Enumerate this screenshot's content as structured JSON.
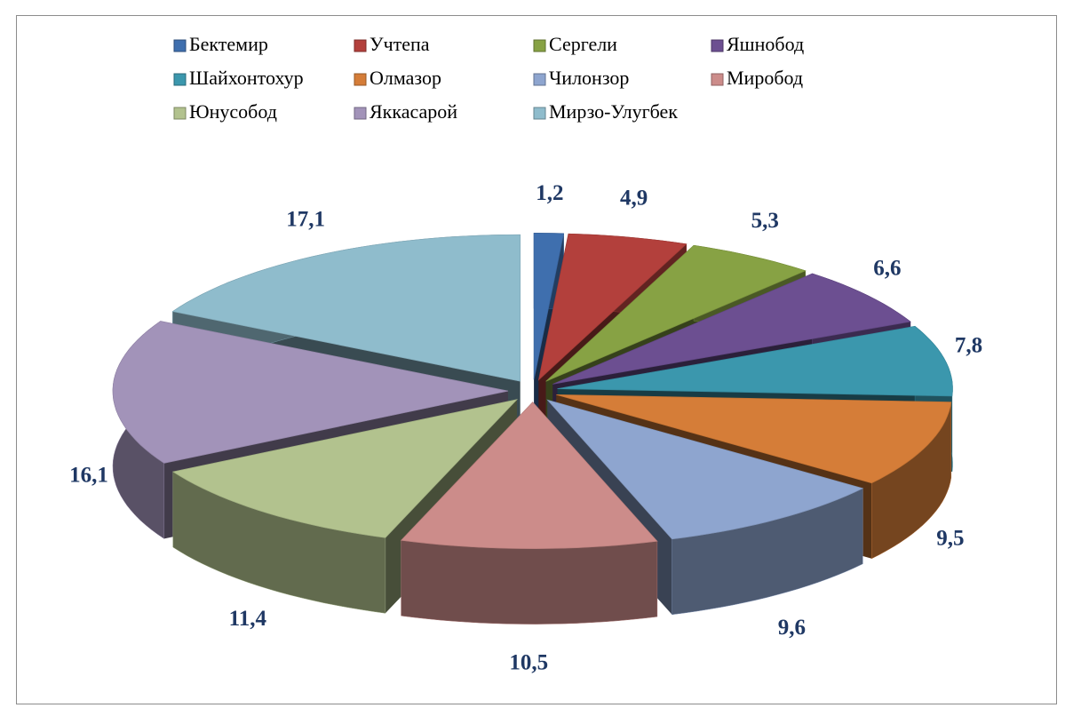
{
  "chart_data": {
    "type": "pie",
    "categories": [
      "Бектемир",
      "Учтепа",
      "Сергели",
      "Яшнобод",
      "Шайхонтохур",
      "Олмазор",
      "Чилонзор",
      "Миробод",
      "Юнусобод",
      "Яккасарой",
      "Мирзо-Улугбек"
    ],
    "values": [
      1.2,
      4.9,
      5.3,
      6.6,
      7.8,
      9.5,
      9.6,
      10.5,
      11.4,
      16.1,
      17.1
    ],
    "value_labels": [
      "1,2",
      "4,9",
      "5,3",
      "6,6",
      "7,8",
      "9,5",
      "9,6",
      "10,5",
      "11,4",
      "16,1",
      "17,1"
    ],
    "colors": [
      "#3f6fae",
      "#b3403c",
      "#87a244",
      "#6c4f91",
      "#3b97ad",
      "#d57d38",
      "#8ea5cf",
      "#cc8c8a",
      "#b2c28e",
      "#a293b9",
      "#8fbccc"
    ],
    "legend": "top"
  }
}
